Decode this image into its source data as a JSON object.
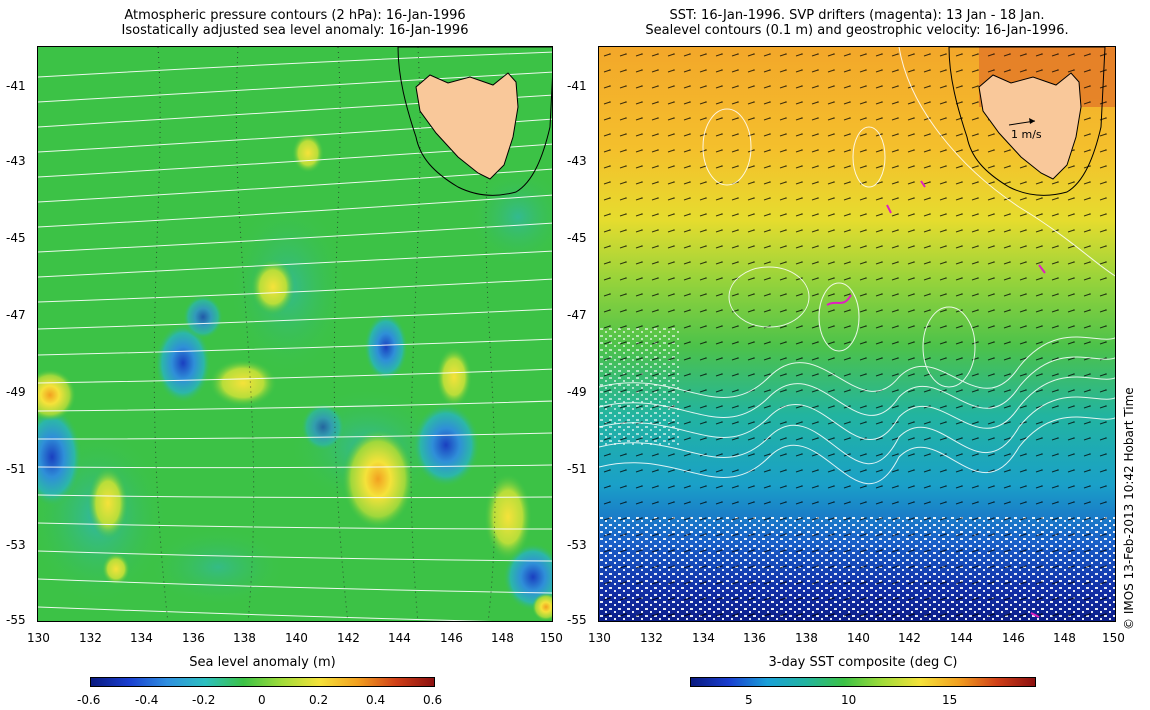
{
  "left_panel": {
    "title_line1": "Atmospheric pressure contours (2 hPa): 16-Jan-1996",
    "title_line2": "Isostatically adjusted sea level anomaly: 16-Jan-1996",
    "colorbar_label": "Sea level anomaly (m)",
    "colorbar_ticks": [
      "-0.6",
      "-0.4",
      "-0.2",
      "0",
      "0.2",
      "0.4",
      "0.6"
    ],
    "colors": {
      "background": "#3cc246",
      "contours": "#ffffff",
      "land": "#f9c89a"
    }
  },
  "right_panel": {
    "title_line1": "SST: 16-Jan-1996. SVP drifters (magenta): 13 Jan - 18 Jan.",
    "title_line2": "Sealevel contours (0.1 m) and geostrophic velocity: 16-Jan-1996.",
    "velocity_scale_label": "1 m/s",
    "colorbar_label": "3-day SST composite (deg C)",
    "colorbar_ticks": [
      "5",
      "10",
      "15"
    ],
    "colors": {
      "warm": "#f0a020",
      "cool": "#20b0a0",
      "cold": "#1030b0",
      "drifters": "#e020c0"
    }
  },
  "axes": {
    "y_ticks": [
      "-41",
      "-43",
      "-45",
      "-47",
      "-49",
      "-51",
      "-53",
      "-55"
    ],
    "x_ticks": [
      "130",
      "132",
      "134",
      "136",
      "138",
      "140",
      "142",
      "144",
      "146",
      "148",
      "150"
    ]
  },
  "credit": "© IMOS 13-Feb-2013 10:42 Hobart Time"
}
